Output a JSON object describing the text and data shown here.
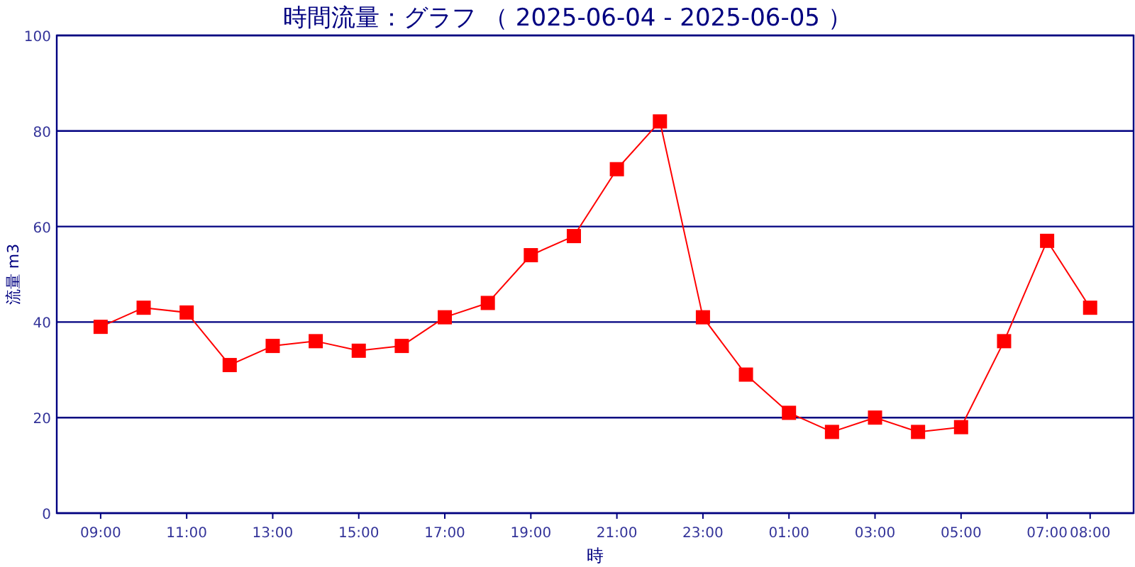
{
  "chart_data": {
    "type": "line",
    "title": "時間流量：グラフ （ 2025-06-04 - 2025-06-05 ）",
    "xlabel": "時",
    "ylabel": "流量 m3",
    "categories": [
      "09:00",
      null,
      "11:00",
      null,
      "13:00",
      null,
      "15:00",
      null,
      "17:00",
      null,
      "19:00",
      null,
      "21:00",
      null,
      "23:00",
      null,
      "01:00",
      null,
      "03:00",
      null,
      "05:00",
      null,
      "07:00",
      "08:00"
    ],
    "values": [
      39,
      43,
      42,
      31,
      35,
      36,
      34,
      35,
      41,
      44,
      54,
      58,
      72,
      82,
      41,
      29,
      21,
      17,
      20,
      17,
      18,
      36,
      57,
      43
    ],
    "color": "#ff0000",
    "marker": "square",
    "line_style": "solid",
    "ylim": [
      0,
      100
    ],
    "yticks": [
      0,
      20,
      40,
      60,
      80,
      100
    ],
    "grid": "y"
  }
}
